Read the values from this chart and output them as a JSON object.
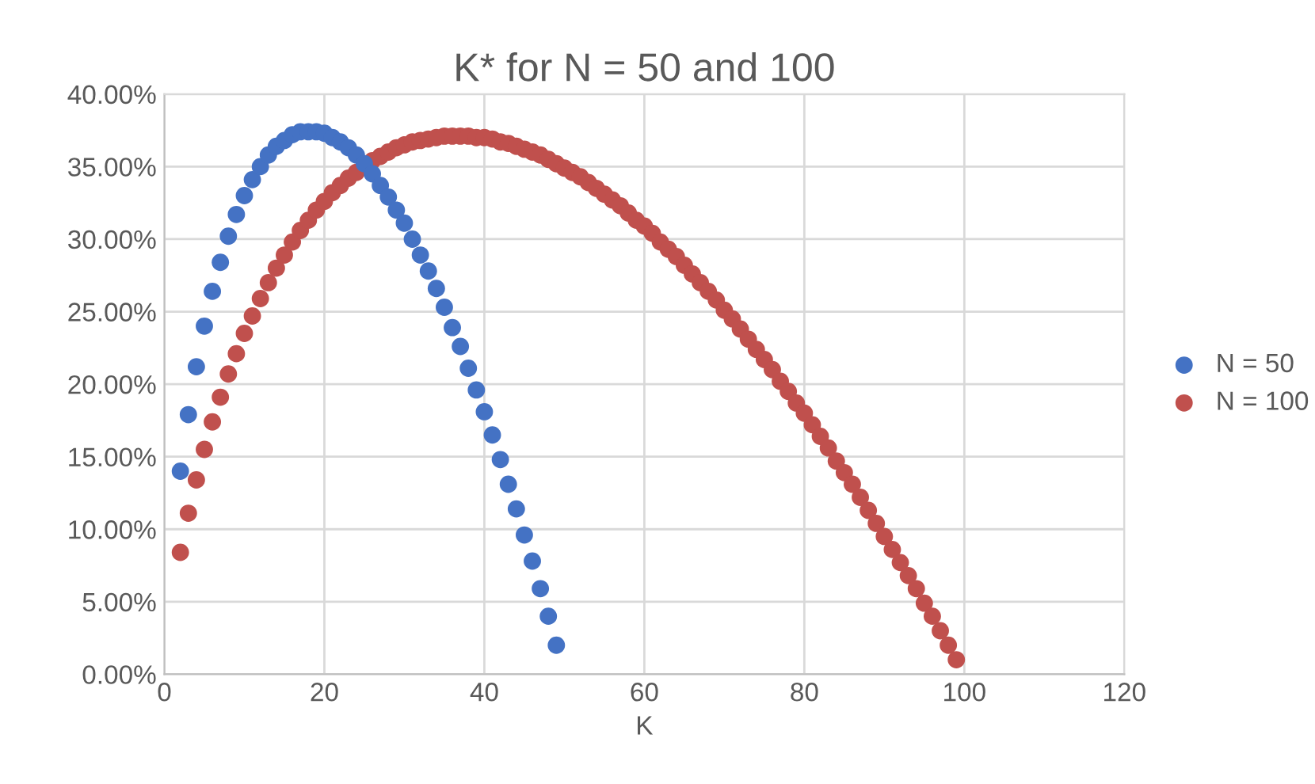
{
  "chart_data": {
    "type": "scatter",
    "title": "K* for N = 50 and 100",
    "xlabel": "K",
    "xlim": [
      0,
      120
    ],
    "xticks": [
      0,
      20,
      40,
      60,
      80,
      100,
      120
    ],
    "ylim": [
      0,
      40
    ],
    "yticks": [
      {
        "value": 0,
        "label": "0.00%"
      },
      {
        "value": 5,
        "label": "5.00%"
      },
      {
        "value": 10,
        "label": "10.00%"
      },
      {
        "value": 15,
        "label": "15.00%"
      },
      {
        "value": 20,
        "label": "20.00%"
      },
      {
        "value": 25,
        "label": "25.00%"
      },
      {
        "value": 30,
        "label": "30.00%"
      },
      {
        "value": 35,
        "label": "35.00%"
      },
      {
        "value": 40,
        "label": "40.00%"
      }
    ],
    "grid": true,
    "legend": "right",
    "marker": "circle",
    "series": [
      {
        "name": "N = 50",
        "color": "#4472c4",
        "x": [
          2,
          3,
          4,
          5,
          6,
          7,
          8,
          9,
          10,
          11,
          12,
          13,
          14,
          15,
          16,
          17,
          18,
          19,
          20,
          21,
          22,
          23,
          24,
          25,
          26,
          27,
          28,
          29,
          30,
          31,
          32,
          33,
          34,
          35,
          36,
          37,
          38,
          39,
          40,
          41,
          42,
          43,
          44,
          45,
          46,
          47,
          48,
          49
        ],
        "values": [
          14.0,
          17.9,
          21.2,
          24.0,
          26.4,
          28.4,
          30.2,
          31.7,
          33.0,
          34.1,
          35.0,
          35.8,
          36.4,
          36.8,
          37.2,
          37.4,
          37.4,
          37.4,
          37.3,
          37.0,
          36.7,
          36.3,
          35.8,
          35.2,
          34.5,
          33.7,
          32.9,
          32.0,
          31.1,
          30.0,
          28.9,
          27.8,
          26.6,
          25.3,
          23.9,
          22.6,
          21.1,
          19.6,
          18.1,
          16.5,
          14.8,
          13.1,
          11.4,
          9.6,
          7.8,
          5.9,
          4.0,
          2.0
        ]
      },
      {
        "name": "N = 100",
        "color": "#c0504d",
        "x": [
          2,
          3,
          4,
          5,
          6,
          7,
          8,
          9,
          10,
          11,
          12,
          13,
          14,
          15,
          16,
          17,
          18,
          19,
          20,
          21,
          22,
          23,
          24,
          25,
          26,
          27,
          28,
          29,
          30,
          31,
          32,
          33,
          34,
          35,
          36,
          37,
          38,
          39,
          40,
          41,
          42,
          43,
          44,
          45,
          46,
          47,
          48,
          49,
          50,
          51,
          52,
          53,
          54,
          55,
          56,
          57,
          58,
          59,
          60,
          61,
          62,
          63,
          64,
          65,
          66,
          67,
          68,
          69,
          70,
          71,
          72,
          73,
          74,
          75,
          76,
          77,
          78,
          79,
          80,
          81,
          82,
          83,
          84,
          85,
          86,
          87,
          88,
          89,
          90,
          91,
          92,
          93,
          94,
          95,
          96,
          97,
          98,
          99
        ],
        "values": [
          8.4,
          11.1,
          13.4,
          15.5,
          17.4,
          19.1,
          20.7,
          22.1,
          23.5,
          24.7,
          25.9,
          27.0,
          28.0,
          28.9,
          29.8,
          30.6,
          31.3,
          32.0,
          32.6,
          33.2,
          33.7,
          34.2,
          34.6,
          null,
          35.4,
          35.7,
          36.0,
          36.3,
          36.5,
          36.7,
          36.8,
          36.9,
          37.0,
          37.1,
          37.1,
          37.1,
          37.1,
          37.0,
          37.0,
          36.9,
          36.7,
          36.6,
          36.4,
          36.2,
          36.0,
          35.8,
          35.5,
          35.2,
          34.9,
          34.6,
          34.3,
          33.9,
          33.5,
          33.1,
          32.7,
          32.3,
          31.8,
          31.3,
          30.9,
          30.4,
          29.8,
          29.3,
          28.8,
          28.2,
          27.6,
          27.0,
          26.4,
          25.8,
          25.1,
          24.5,
          23.8,
          23.1,
          22.4,
          21.7,
          21.0,
          20.2,
          19.5,
          18.7,
          18.0,
          17.2,
          16.4,
          15.6,
          14.7,
          13.9,
          13.1,
          12.2,
          11.3,
          10.4,
          9.5,
          8.6,
          7.7,
          6.8,
          5.9,
          4.9,
          4.0,
          3.0,
          2.0,
          1.0
        ]
      }
    ]
  }
}
